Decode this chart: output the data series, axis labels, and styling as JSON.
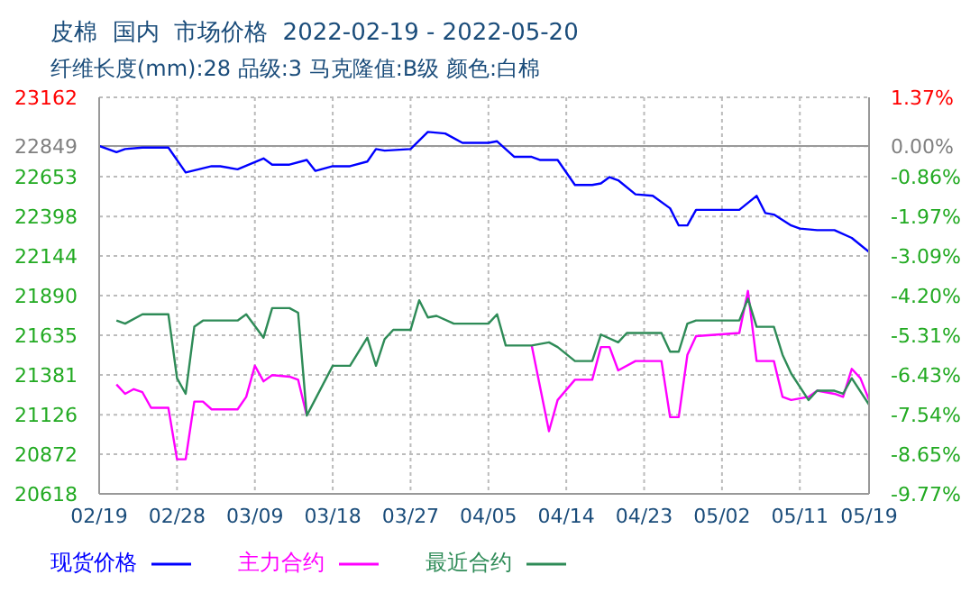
{
  "chart_data": {
    "type": "line",
    "title": "皮棉  国内  市场价格  2022-02-19 - 2022-05-20",
    "subtitle": "纤维长度(mm):28 品级:3 马克隆值:B级 颜色:白棉",
    "xlim": [
      "2022-02-19",
      "2022-05-19"
    ],
    "xticks": [
      {
        "value": "2022-02-19",
        "label": "02/19"
      },
      {
        "value": "2022-02-28",
        "label": "02/28"
      },
      {
        "value": "2022-03-09",
        "label": "03/09"
      },
      {
        "value": "2022-03-18",
        "label": "03/18"
      },
      {
        "value": "2022-03-27",
        "label": "03/27"
      },
      {
        "value": "2022-04-05",
        "label": "04/05"
      },
      {
        "value": "2022-04-14",
        "label": "04/14"
      },
      {
        "value": "2022-04-23",
        "label": "04/23"
      },
      {
        "value": "2022-05-02",
        "label": "05/02"
      },
      {
        "value": "2022-05-11",
        "label": "05/11"
      },
      {
        "value": "2022-05-19",
        "label": "05/19"
      }
    ],
    "ylim": [
      20618,
      23162
    ],
    "yticks": [
      20618,
      20872,
      21126,
      21381,
      21635,
      21890,
      22144,
      22398,
      22653,
      22849,
      23162
    ],
    "y2lim": [
      -9.77,
      1.37
    ],
    "y2ticks": [
      {
        "value": -9.77,
        "label": "-9.77%"
      },
      {
        "value": -8.65,
        "label": "-8.65%"
      },
      {
        "value": -7.54,
        "label": "-7.54%"
      },
      {
        "value": -6.43,
        "label": "-6.43%"
      },
      {
        "value": -5.31,
        "label": "-5.31%"
      },
      {
        "value": -4.2,
        "label": "-4.20%"
      },
      {
        "value": -3.09,
        "label": "-3.09%"
      },
      {
        "value": -1.97,
        "label": "-1.97%"
      },
      {
        "value": -0.86,
        "label": "-0.86%"
      },
      {
        "value": 0,
        "label": "0.00%"
      },
      {
        "value": 1.37,
        "label": "1.37%"
      }
    ],
    "ref_lines": [
      {
        "axis": "y2",
        "value": 0,
        "color": "#999999"
      }
    ],
    "grid": true,
    "legend": "bottom",
    "series": [
      {
        "name": "现货价格",
        "color": "#0000ff",
        "x": [
          "2022-02-19",
          "2022-02-21",
          "2022-02-22",
          "2022-02-24",
          "2022-02-27",
          "2022-03-01",
          "2022-03-04",
          "2022-03-05",
          "2022-03-07",
          "2022-03-10",
          "2022-03-11",
          "2022-03-13",
          "2022-03-15",
          "2022-03-16",
          "2022-03-18",
          "2022-03-20",
          "2022-03-22",
          "2022-03-23",
          "2022-03-24",
          "2022-03-27",
          "2022-03-29",
          "2022-03-31",
          "2022-04-02",
          "2022-04-05",
          "2022-04-06",
          "2022-04-08",
          "2022-04-10",
          "2022-04-11",
          "2022-04-13",
          "2022-04-15",
          "2022-04-17",
          "2022-04-18",
          "2022-04-19",
          "2022-04-20",
          "2022-04-22",
          "2022-04-24",
          "2022-04-26",
          "2022-04-27",
          "2022-04-28",
          "2022-04-29",
          "2022-05-04",
          "2022-05-06",
          "2022-05-07",
          "2022-05-08",
          "2022-05-10",
          "2022-05-11",
          "2022-05-13",
          "2022-05-15",
          "2022-05-17",
          "2022-05-19"
        ],
        "values": [
          22850,
          22810,
          22830,
          22840,
          22840,
          22680,
          22720,
          22720,
          22700,
          22770,
          22730,
          22730,
          22760,
          22690,
          22720,
          22720,
          22750,
          22830,
          22820,
          22830,
          22940,
          22930,
          22870,
          22870,
          22880,
          22780,
          22780,
          22760,
          22760,
          22600,
          22600,
          22610,
          22650,
          22630,
          22540,
          22530,
          22450,
          22340,
          22340,
          22440,
          22440,
          22530,
          22420,
          22410,
          22340,
          22320,
          22310,
          22310,
          22260,
          22170
        ]
      },
      {
        "name": "主力合约",
        "color": "#ff00ff",
        "x": [
          "2022-02-21",
          "2022-02-22",
          "2022-02-23",
          "2022-02-24",
          "2022-02-25",
          "2022-02-27",
          "2022-02-28",
          "2022-03-01",
          "2022-03-02",
          "2022-03-03",
          "2022-03-04",
          "2022-03-07",
          "2022-03-08",
          "2022-03-09",
          "2022-03-10",
          "2022-03-11",
          "2022-03-13",
          "2022-03-14",
          "2022-03-15",
          "2022-03-18",
          "2022-03-20",
          "2022-03-22",
          "2022-03-23",
          "2022-03-24",
          "2022-03-25",
          "2022-03-27",
          "2022-03-28",
          "2022-03-29",
          "2022-03-30",
          "2022-04-01",
          "2022-04-05",
          "2022-04-06",
          "2022-04-07",
          "2022-04-10",
          "2022-04-12",
          "2022-04-13",
          "2022-04-15",
          "2022-04-17",
          "2022-04-18",
          "2022-04-19",
          "2022-04-20",
          "2022-04-22",
          "2022-04-25",
          "2022-04-26",
          "2022-04-27",
          "2022-04-28",
          "2022-04-29",
          "2022-05-04",
          "2022-05-05",
          "2022-05-06",
          "2022-05-08",
          "2022-05-09",
          "2022-05-10",
          "2022-05-12",
          "2022-05-13",
          "2022-05-15",
          "2022-05-16",
          "2022-05-17",
          "2022-05-18",
          "2022-05-19"
        ],
        "values": [
          21320,
          21260,
          21290,
          21270,
          21170,
          21170,
          20840,
          20840,
          21210,
          21210,
          21160,
          21160,
          21240,
          21440,
          21340,
          21380,
          21370,
          21350,
          21120,
          null,
          null,
          null,
          null,
          null,
          null,
          null,
          null,
          null,
          null,
          null,
          null,
          null,
          null,
          21570,
          21020,
          21220,
          21350,
          21350,
          21560,
          21560,
          21410,
          21470,
          21470,
          21110,
          21110,
          21510,
          21630,
          21650,
          21920,
          21470,
          21470,
          21240,
          21220,
          21240,
          21280,
          21260,
          21240,
          21420,
          21360,
          21220
        ]
      },
      {
        "name": "最近合约",
        "color": "#2e8b57",
        "x": [
          "2022-02-21",
          "2022-02-22",
          "2022-02-24",
          "2022-02-27",
          "2022-02-28",
          "2022-03-01",
          "2022-03-02",
          "2022-03-03",
          "2022-03-07",
          "2022-03-08",
          "2022-03-10",
          "2022-03-11",
          "2022-03-13",
          "2022-03-14",
          "2022-03-15",
          "2022-03-18",
          "2022-03-20",
          "2022-03-22",
          "2022-03-23",
          "2022-03-24",
          "2022-03-25",
          "2022-03-27",
          "2022-03-28",
          "2022-03-29",
          "2022-03-30",
          "2022-04-01",
          "2022-04-05",
          "2022-04-06",
          "2022-04-07",
          "2022-04-10",
          "2022-04-12",
          "2022-04-13",
          "2022-04-15",
          "2022-04-17",
          "2022-04-18",
          "2022-04-20",
          "2022-04-21",
          "2022-04-25",
          "2022-04-26",
          "2022-04-27",
          "2022-04-28",
          "2022-04-29",
          "2022-05-04",
          "2022-05-05",
          "2022-05-06",
          "2022-05-08",
          "2022-05-09",
          "2022-05-10",
          "2022-05-12",
          "2022-05-13",
          "2022-05-15",
          "2022-05-16",
          "2022-05-17",
          "2022-05-19"
        ],
        "values": [
          21730,
          21710,
          21770,
          21770,
          21360,
          21260,
          21690,
          21730,
          21730,
          21770,
          21620,
          21810,
          21810,
          21780,
          21120,
          21440,
          21440,
          21620,
          21440,
          21610,
          21670,
          21670,
          21860,
          21750,
          21760,
          21710,
          21710,
          21770,
          21570,
          21570,
          21590,
          21560,
          21470,
          21470,
          21640,
          21590,
          21650,
          21650,
          21530,
          21530,
          21710,
          21730,
          21730,
          21870,
          21690,
          21690,
          21510,
          21390,
          21220,
          21280,
          21280,
          21260,
          21360,
          21190
        ]
      }
    ]
  }
}
